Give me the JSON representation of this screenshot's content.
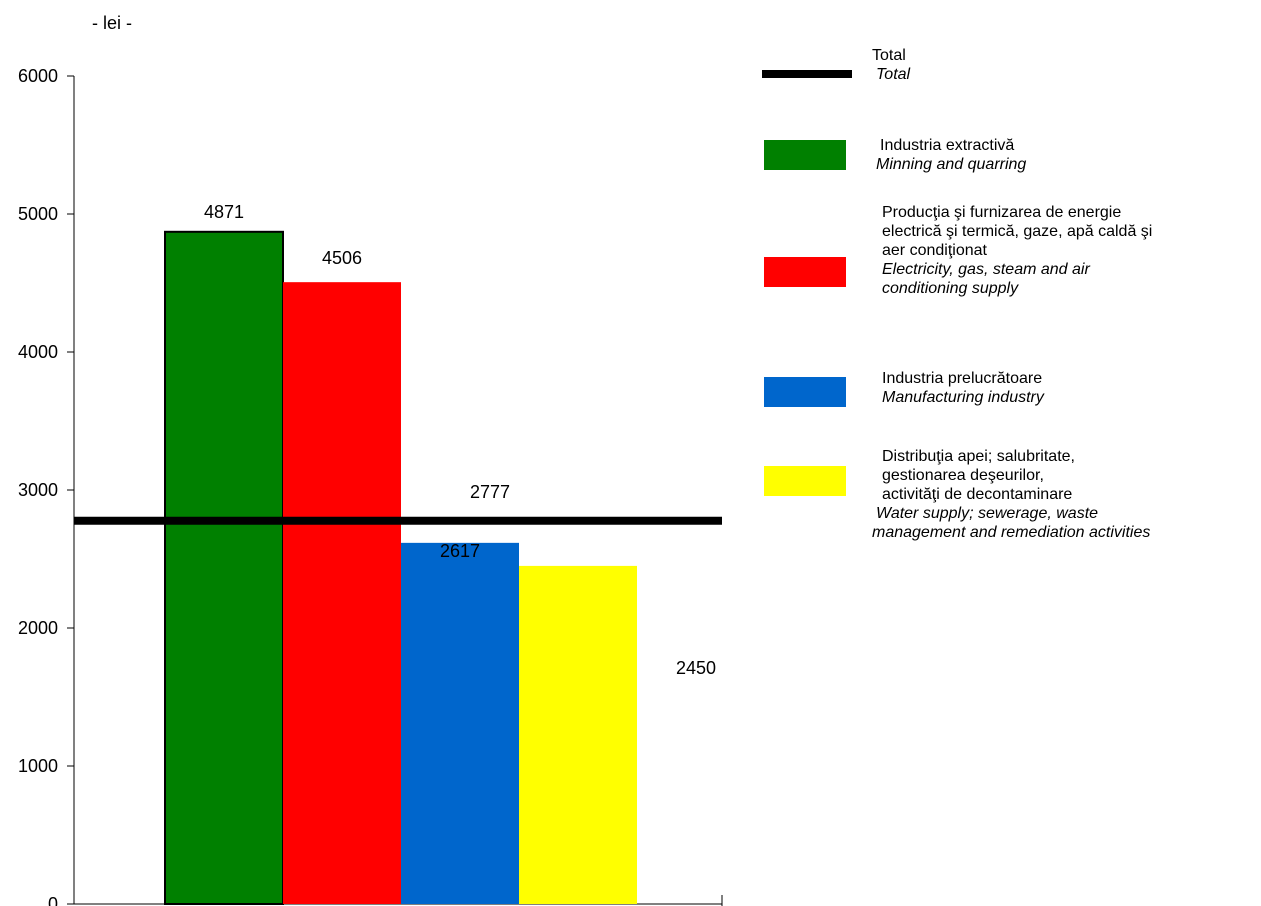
{
  "chart_data": {
    "type": "bar",
    "ylabel": "- lei -",
    "ylim": [
      0,
      6000
    ],
    "yticks": [
      0,
      1000,
      2000,
      3000,
      4000,
      5000,
      6000
    ],
    "grid": false,
    "legend_placement": "right",
    "bars": [
      {
        "category": "Industria extractivă",
        "value": 4871,
        "label": "4871",
        "color": "#008000"
      },
      {
        "category": "Producţia şi furnizarea de energie electrică şi termică, gaze, apă caldă şi aer condiţionat",
        "value": 4506,
        "label": "4506",
        "color": "#ff0000"
      },
      {
        "category": "Industria prelucrătoare",
        "value": 2617,
        "label": "2617",
        "color": "#0066cc"
      },
      {
        "category": "Distribuţia apei; salubritate, gestionarea deşeurilor, activităţi de decontaminare",
        "value": 2450,
        "label": "2450",
        "color": "#ffff00"
      }
    ],
    "total_line": {
      "value": 2777,
      "label": "2777",
      "color": "#000000"
    }
  },
  "legend": [
    {
      "key": "total",
      "color": "#000000",
      "line1": "Total",
      "line2": "Total"
    },
    {
      "key": "extractiva",
      "color": "#008000",
      "line1": "Industria extractivă",
      "line2": "Minning and quarring"
    },
    {
      "key": "energie",
      "color": "#ff0000",
      "ro1": "Producţia şi furnizarea de energie",
      "ro2": "electrică şi termică, gaze, apă caldă şi",
      "ro3": "aer condiţionat",
      "en1": "Electricity, gas, steam and air",
      "en2": "conditioning supply"
    },
    {
      "key": "prelucratoare",
      "color": "#0066cc",
      "line1": "Industria prelucrătoare",
      "line2": "Manufacturing industry"
    },
    {
      "key": "apa",
      "color": "#ffff00",
      "ro1": "Distribuţia apei; salubritate,",
      "ro2": "gestionarea deşeurilor,",
      "ro3": "activităţi de decontaminare",
      "en1": "Water supply; sewerage, waste",
      "en2": "management and remediation activities"
    }
  ]
}
